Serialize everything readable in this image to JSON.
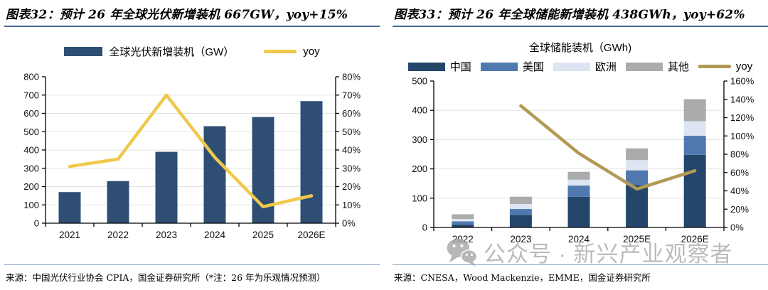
{
  "figures": [
    {
      "title": "图表32：预计 26 年全球光伏新增装机 667GW，yoy+15%",
      "source": "来源：中国光伏行业协会 CPIA，国金证券研究所（*注：26 年为乐观情况预测）"
    },
    {
      "title": "图表33：预计 26 年全球储能新增装机 438GWh，yoy+62%",
      "source": "来源：CNESA，Wood Mackenzie，EMME，国金证券研究所"
    }
  ],
  "chart_data": [
    {
      "type": "bar",
      "title": "",
      "categories": [
        "2021",
        "2022",
        "2023",
        "2024",
        "2025",
        "2026E"
      ],
      "series": [
        {
          "name": "全球光伏新增装机（GW）",
          "type": "bar",
          "color": "#2E4F73",
          "axis": "left",
          "values": [
            170,
            230,
            390,
            530,
            580,
            667
          ]
        },
        {
          "name": "yoy",
          "type": "line",
          "color": "#F0C84B",
          "axis": "right",
          "unit": "%",
          "values": [
            31,
            35,
            70,
            36,
            9,
            15
          ]
        }
      ],
      "left_axis": {
        "min": 0,
        "max": 800,
        "step": 100
      },
      "right_axis": {
        "min": 0,
        "max": 80,
        "step": 10,
        "suffix": "%"
      },
      "grid": true,
      "legend_position": "top"
    },
    {
      "type": "stacked-bar",
      "title": "全球储能装机（GWh)",
      "categories": [
        "2022",
        "2023",
        "2024",
        "2025E",
        "2026E"
      ],
      "series": [
        {
          "name": "中国",
          "type": "bar",
          "color": "#24466B",
          "axis": "left",
          "values": [
            10,
            43,
            105,
            145,
            248
          ]
        },
        {
          "name": "美国",
          "type": "bar",
          "color": "#5079B0",
          "axis": "left",
          "values": [
            11,
            20,
            38,
            50,
            65
          ]
        },
        {
          "name": "欧洲",
          "type": "bar",
          "color": "#DCE5F1",
          "axis": "left",
          "values": [
            8,
            17,
            20,
            35,
            50
          ]
        },
        {
          "name": "其他",
          "type": "bar",
          "color": "#ABABAB",
          "axis": "left",
          "values": [
            16,
            25,
            27,
            40,
            75
          ]
        },
        {
          "name": "yoy",
          "type": "line",
          "color": "#B29A55",
          "axis": "right",
          "unit": "%",
          "values": [
            null,
            133,
            81,
            42,
            62
          ]
        }
      ],
      "stack_totals": [
        45,
        105,
        190,
        270,
        438
      ],
      "left_axis": {
        "min": 0,
        "max": 500,
        "step": 100
      },
      "right_axis": {
        "min": 0,
        "max": 160,
        "step": 20,
        "suffix": "%"
      },
      "grid": true,
      "legend_position": "top"
    }
  ],
  "watermark": {
    "icon": "wechat-icon",
    "text": "公众号 · 新兴产业观察者",
    "color": "#a8a8a8"
  }
}
